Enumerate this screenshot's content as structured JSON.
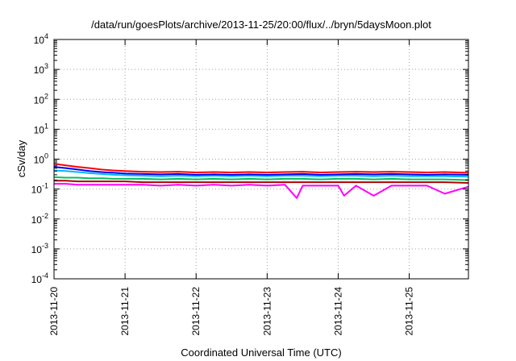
{
  "chart_data": {
    "type": "line",
    "title": "/data/run/goesPlots/archive/2013-11-25/20:00/flux/../bryn/5daysMoon.plot",
    "xlabel": "Coordinated Universal Time (UTC)",
    "ylabel": "cSv/day",
    "x_type": "date",
    "xlim": [
      "2013-11-20",
      "2013-11-25T20:00"
    ],
    "x_ticks": [
      "2013-11-20",
      "2013-11-21",
      "2013-11-22",
      "2013-11-23",
      "2013-11-24",
      "2013-11-25"
    ],
    "y_scale": "log",
    "ylim": [
      0.0001,
      10000
    ],
    "y_ticks": [
      {
        "base": "10",
        "exp": "-4",
        "value": 0.0001
      },
      {
        "base": "10",
        "exp": "-3",
        "value": 0.001
      },
      {
        "base": "10",
        "exp": "-2",
        "value": 0.01
      },
      {
        "base": "10",
        "exp": "-1",
        "value": 0.1
      },
      {
        "base": "10",
        "exp": "0",
        "value": 1
      },
      {
        "base": "10",
        "exp": "1",
        "value": 10
      },
      {
        "base": "10",
        "exp": "2",
        "value": 100
      },
      {
        "base": "10",
        "exp": "3",
        "value": 1000
      },
      {
        "base": "10",
        "exp": "4",
        "value": 10000
      }
    ],
    "grid": true,
    "legend": "none",
    "series": [
      {
        "color": "#ff0000",
        "x": [
          "2013-11-20T00:00",
          "2013-11-20T04:00",
          "2013-11-20T08:00",
          "2013-11-20T12:00",
          "2013-11-20T16:00",
          "2013-11-20T20:00",
          "2013-11-21T00:00",
          "2013-11-21T06:00",
          "2013-11-21T12:00",
          "2013-11-21T18:00",
          "2013-11-22T00:00",
          "2013-11-22T06:00",
          "2013-11-22T12:00",
          "2013-11-22T18:00",
          "2013-11-23T00:00",
          "2013-11-23T06:00",
          "2013-11-23T12:00",
          "2013-11-23T18:00",
          "2013-11-24T00:00",
          "2013-11-24T06:00",
          "2013-11-24T12:00",
          "2013-11-24T18:00",
          "2013-11-25T00:00",
          "2013-11-25T06:00",
          "2013-11-25T12:00",
          "2013-11-25T20:00"
        ],
        "values": [
          0.7,
          0.62,
          0.55,
          0.5,
          0.45,
          0.42,
          0.4,
          0.38,
          0.37,
          0.38,
          0.36,
          0.37,
          0.36,
          0.37,
          0.36,
          0.37,
          0.38,
          0.36,
          0.37,
          0.38,
          0.37,
          0.38,
          0.37,
          0.36,
          0.37,
          0.35
        ]
      },
      {
        "color": "#0000ff",
        "x": [
          "2013-11-20T00:00",
          "2013-11-20T04:00",
          "2013-11-20T08:00",
          "2013-11-20T12:00",
          "2013-11-20T16:00",
          "2013-11-20T20:00",
          "2013-11-21T00:00",
          "2013-11-21T06:00",
          "2013-11-21T12:00",
          "2013-11-21T18:00",
          "2013-11-22T00:00",
          "2013-11-22T06:00",
          "2013-11-22T12:00",
          "2013-11-22T18:00",
          "2013-11-23T00:00",
          "2013-11-23T06:00",
          "2013-11-23T12:00",
          "2013-11-23T18:00",
          "2013-11-24T00:00",
          "2013-11-24T06:00",
          "2013-11-24T12:00",
          "2013-11-24T18:00",
          "2013-11-25T00:00",
          "2013-11-25T06:00",
          "2013-11-25T12:00",
          "2013-11-25T20:00"
        ],
        "values": [
          0.55,
          0.5,
          0.45,
          0.4,
          0.37,
          0.35,
          0.33,
          0.32,
          0.31,
          0.32,
          0.3,
          0.31,
          0.3,
          0.31,
          0.3,
          0.31,
          0.32,
          0.3,
          0.31,
          0.32,
          0.31,
          0.32,
          0.31,
          0.3,
          0.31,
          0.3
        ]
      },
      {
        "color": "#00b8ff",
        "x": [
          "2013-11-20T00:00",
          "2013-11-20T04:00",
          "2013-11-20T08:00",
          "2013-11-20T12:00",
          "2013-11-20T16:00",
          "2013-11-20T20:00",
          "2013-11-21T00:00",
          "2013-11-21T06:00",
          "2013-11-21T12:00",
          "2013-11-21T18:00",
          "2013-11-22T00:00",
          "2013-11-22T06:00",
          "2013-11-22T12:00",
          "2013-11-22T18:00",
          "2013-11-23T00:00",
          "2013-11-23T06:00",
          "2013-11-23T12:00",
          "2013-11-23T18:00",
          "2013-11-24T00:00",
          "2013-11-24T06:00",
          "2013-11-24T12:00",
          "2013-11-24T18:00",
          "2013-11-25T00:00",
          "2013-11-25T06:00",
          "2013-11-25T12:00",
          "2013-11-25T20:00"
        ],
        "values": [
          0.42,
          0.4,
          0.37,
          0.34,
          0.32,
          0.3,
          0.29,
          0.28,
          0.27,
          0.28,
          0.27,
          0.28,
          0.27,
          0.28,
          0.27,
          0.28,
          0.28,
          0.27,
          0.28,
          0.28,
          0.27,
          0.28,
          0.27,
          0.27,
          0.27,
          0.26
        ]
      },
      {
        "color": "#00c060",
        "x": [
          "2013-11-20T00:00",
          "2013-11-20T04:00",
          "2013-11-20T08:00",
          "2013-11-20T12:00",
          "2013-11-20T16:00",
          "2013-11-20T20:00",
          "2013-11-21T00:00",
          "2013-11-21T06:00",
          "2013-11-21T12:00",
          "2013-11-21T18:00",
          "2013-11-22T00:00",
          "2013-11-22T06:00",
          "2013-11-22T12:00",
          "2013-11-22T18:00",
          "2013-11-23T00:00",
          "2013-11-23T06:00",
          "2013-11-23T12:00",
          "2013-11-23T18:00",
          "2013-11-24T00:00",
          "2013-11-24T06:00",
          "2013-11-24T12:00",
          "2013-11-24T18:00",
          "2013-11-25T00:00",
          "2013-11-25T06:00",
          "2013-11-25T12:00",
          "2013-11-25T20:00"
        ],
        "values": [
          0.25,
          0.24,
          0.24,
          0.23,
          0.23,
          0.22,
          0.22,
          0.22,
          0.21,
          0.22,
          0.21,
          0.22,
          0.21,
          0.22,
          0.21,
          0.22,
          0.22,
          0.21,
          0.22,
          0.22,
          0.21,
          0.22,
          0.21,
          0.21,
          0.21,
          0.2
        ]
      },
      {
        "color": "#b00000",
        "x": [
          "2013-11-20T00:00",
          "2013-11-20T04:00",
          "2013-11-20T08:00",
          "2013-11-20T12:00",
          "2013-11-20T16:00",
          "2013-11-20T20:00",
          "2013-11-21T00:00",
          "2013-11-21T06:00",
          "2013-11-21T12:00",
          "2013-11-21T18:00",
          "2013-11-22T00:00",
          "2013-11-22T06:00",
          "2013-11-22T12:00",
          "2013-11-22T18:00",
          "2013-11-23T00:00",
          "2013-11-23T06:00",
          "2013-11-23T12:00",
          "2013-11-23T18:00",
          "2013-11-24T00:00",
          "2013-11-24T06:00",
          "2013-11-24T12:00",
          "2013-11-24T18:00",
          "2013-11-25T00:00",
          "2013-11-25T06:00",
          "2013-11-25T12:00",
          "2013-11-25T20:00"
        ],
        "values": [
          0.19,
          0.19,
          0.18,
          0.18,
          0.18,
          0.18,
          0.18,
          0.17,
          0.17,
          0.17,
          0.17,
          0.17,
          0.17,
          0.17,
          0.17,
          0.17,
          0.17,
          0.17,
          0.17,
          0.17,
          0.17,
          0.17,
          0.17,
          0.17,
          0.17,
          0.16
        ]
      },
      {
        "color": "#ff00ff",
        "x": [
          "2013-11-20T00:00",
          "2013-11-20T04:00",
          "2013-11-20T08:00",
          "2013-11-20T12:00",
          "2013-11-20T16:00",
          "2013-11-20T20:00",
          "2013-11-21T00:00",
          "2013-11-21T06:00",
          "2013-11-21T12:00",
          "2013-11-21T18:00",
          "2013-11-22T00:00",
          "2013-11-22T06:00",
          "2013-11-22T12:00",
          "2013-11-22T18:00",
          "2013-11-23T00:00",
          "2013-11-23T06:00",
          "2013-11-23T10:00",
          "2013-11-23T12:00",
          "2013-11-23T18:00",
          "2013-11-24T00:00",
          "2013-11-24T02:00",
          "2013-11-24T06:00",
          "2013-11-24T12:00",
          "2013-11-24T18:00",
          "2013-11-25T00:00",
          "2013-11-25T06:00",
          "2013-11-25T12:00",
          "2013-11-25T20:00"
        ],
        "values": [
          0.15,
          0.15,
          0.14,
          0.14,
          0.14,
          0.14,
          0.14,
          0.14,
          0.13,
          0.14,
          0.13,
          0.14,
          0.13,
          0.14,
          0.13,
          0.14,
          0.05,
          0.13,
          0.13,
          0.13,
          0.06,
          0.13,
          0.06,
          0.13,
          0.13,
          0.13,
          0.07,
          0.12
        ]
      }
    ]
  }
}
